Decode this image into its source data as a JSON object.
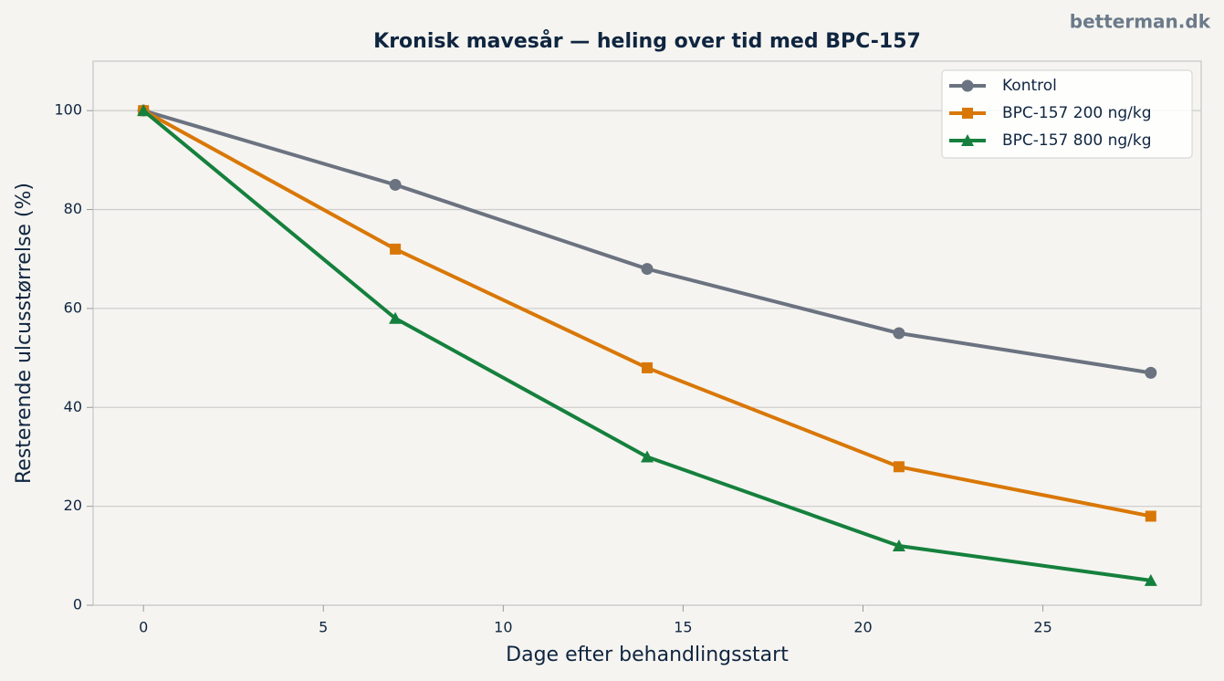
{
  "watermark": "betterman.dk",
  "chart_data": {
    "type": "line",
    "title": "Kronisk mavesår — heling over tid med BPC-157",
    "x_label": "Dage efter behandlingsstart",
    "y_label": "Resterende ulcusstørrelse (%)",
    "x": [
      0,
      7,
      14,
      21,
      28
    ],
    "series": [
      {
        "name": "Kontrol",
        "color": "#6b7280",
        "marker": "circle",
        "values": [
          100,
          85,
          68,
          55,
          47
        ]
      },
      {
        "name": "BPC-157 200 ng/kg",
        "color": "#d97706",
        "marker": "square",
        "values": [
          100,
          72,
          48,
          28,
          18
        ]
      },
      {
        "name": "BPC-157 800 ng/kg",
        "color": "#15803d",
        "marker": "triangle",
        "values": [
          100,
          58,
          30,
          12,
          5
        ]
      }
    ],
    "xlim": [
      -1.4,
      29.4
    ],
    "ylim": [
      0,
      110
    ],
    "xticks": [
      0,
      5,
      10,
      15,
      20,
      25
    ],
    "yticks": [
      0,
      20,
      40,
      60,
      80,
      100
    ],
    "grid": true,
    "legend": "upper right"
  }
}
